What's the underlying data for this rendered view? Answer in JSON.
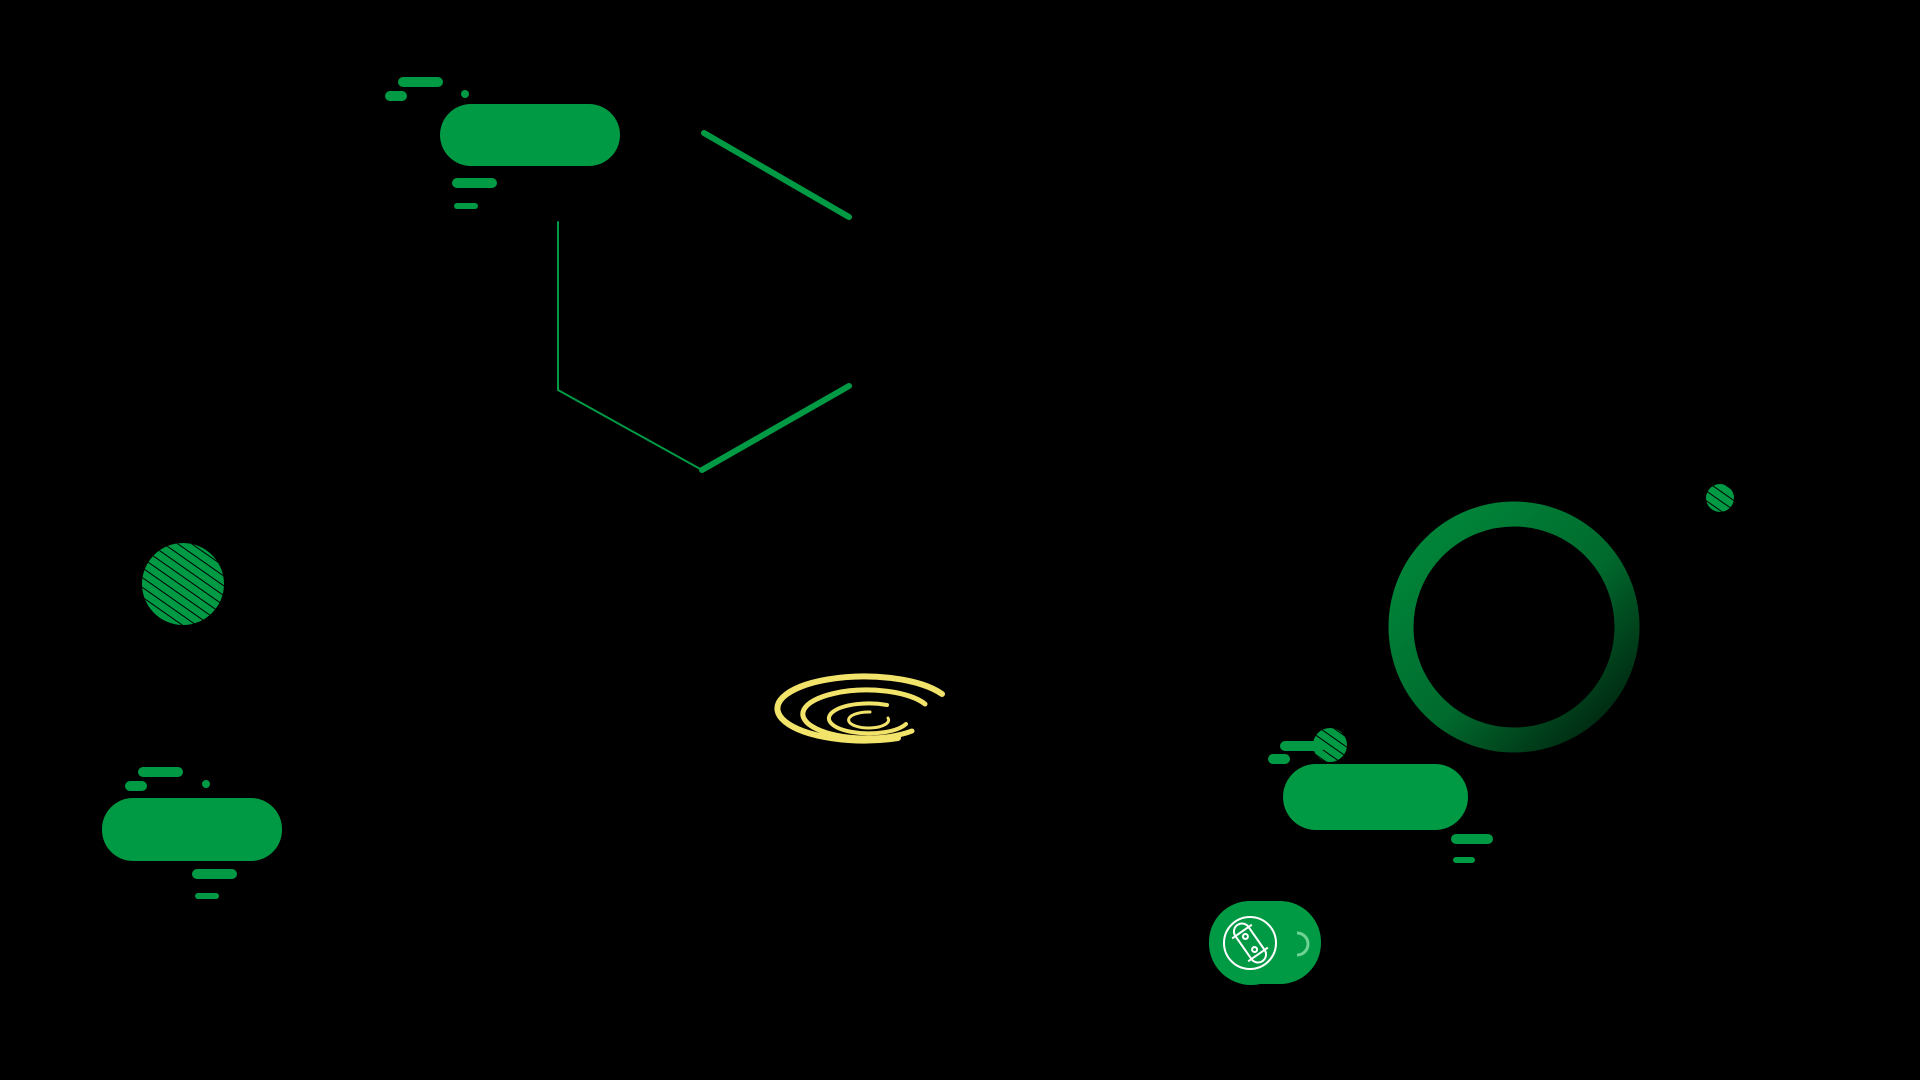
{
  "scene": {
    "background": "#000000",
    "accent_green": "#009A44",
    "dark_green": "#00702E",
    "accent_yellow": "#F2E36B",
    "icons": {
      "pill_shape": "rounded-pill-icon",
      "hexagon_outline": "hexagon-outline-icon",
      "hatched_circle": "hatched-circle-icon",
      "ring": "ring-icon",
      "spiral": "spiral-icon",
      "skateboard_badge": "skateboard-icon"
    }
  }
}
